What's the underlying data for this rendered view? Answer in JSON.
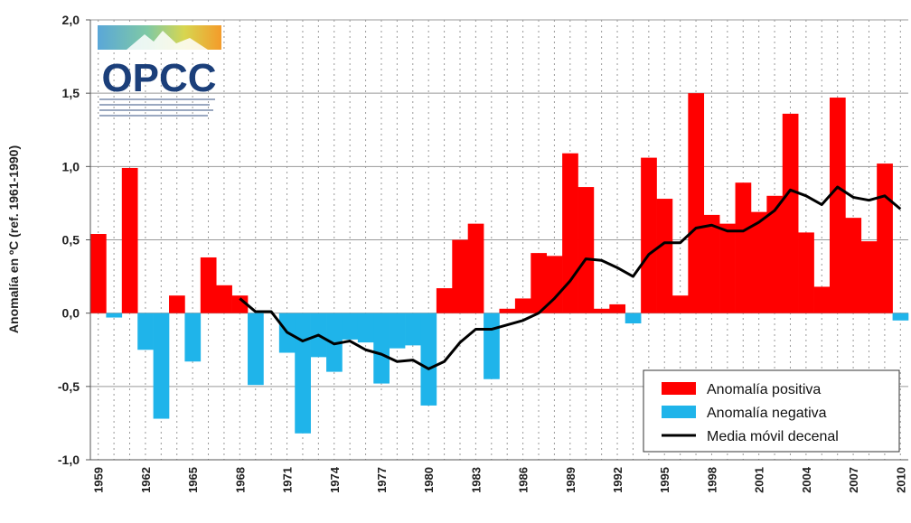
{
  "chart_data": {
    "type": "bar",
    "y_label": "Anomalía en ºC (ref. 1961-1990)",
    "logo": "OPCC",
    "categories": [
      "1959",
      null,
      null,
      "1962",
      null,
      null,
      "1965",
      null,
      null,
      "1968",
      null,
      null,
      "1971",
      null,
      null,
      "1974",
      null,
      null,
      "1977",
      null,
      null,
      "1980",
      null,
      null,
      "1983",
      null,
      null,
      "1986",
      null,
      null,
      "1989",
      null,
      null,
      "1992",
      null,
      null,
      "1995",
      null,
      null,
      "1998",
      null,
      null,
      "2001",
      null,
      null,
      "2004",
      null,
      null,
      "2007",
      null,
      null,
      "2010"
    ],
    "series": [
      {
        "name": "Anomalía positiva",
        "color": "#ff0000",
        "type": "bar",
        "values": [
          0.54,
          null,
          0.99,
          null,
          null,
          0.12,
          null,
          0.38,
          0.19,
          0.12,
          null,
          0,
          null,
          null,
          null,
          null,
          null,
          null,
          null,
          null,
          null,
          null,
          0.17,
          0.5,
          0.61,
          null,
          0.03,
          0.1,
          0.41,
          0.39,
          1.09,
          0.86,
          0.03,
          0.06,
          null,
          1.06,
          0.78,
          0.12,
          1.5,
          0.67,
          0.61,
          0.89,
          0.69,
          0.8,
          1.36,
          0.55,
          0.18,
          1.47,
          0.65,
          0.49,
          1.02,
          null
        ]
      },
      {
        "name": "Anomalía negativa",
        "color": "#1fb4ea",
        "type": "bar",
        "values": [
          null,
          -0.03,
          null,
          -0.25,
          -0.72,
          null,
          -0.33,
          null,
          null,
          null,
          -0.49,
          null,
          -0.27,
          -0.82,
          -0.3,
          -0.4,
          -0.18,
          -0.2,
          -0.48,
          -0.24,
          -0.22,
          -0.63,
          null,
          null,
          null,
          -0.45,
          null,
          null,
          null,
          null,
          null,
          null,
          null,
          null,
          -0.07,
          null,
          null,
          null,
          null,
          null,
          null,
          null,
          null,
          null,
          null,
          null,
          null,
          null,
          null,
          null,
          null,
          -0.05
        ]
      },
      {
        "name": "Media móvil decenal",
        "color": "#000000",
        "type": "line",
        "values": [
          null,
          null,
          null,
          null,
          null,
          null,
          null,
          null,
          null,
          0.1,
          0.01,
          0.01,
          -0.13,
          -0.19,
          -0.15,
          -0.21,
          -0.19,
          -0.25,
          -0.28,
          -0.33,
          -0.32,
          -0.38,
          -0.33,
          -0.2,
          -0.11,
          -0.11,
          -0.08,
          -0.05,
          0.0,
          0.1,
          0.22,
          0.37,
          0.36,
          0.31,
          0.25,
          0.4,
          0.48,
          0.48,
          0.58,
          0.6,
          0.56,
          0.56,
          0.62,
          0.7,
          0.84,
          0.8,
          0.74,
          0.86,
          0.79,
          0.77,
          0.8,
          0.71
        ]
      }
    ],
    "ylim": [
      -1,
      2
    ],
    "yticks": [
      {
        "value": -1,
        "label": "-1,0"
      },
      {
        "value": -0.5,
        "label": "-0,5"
      },
      {
        "value": 0,
        "label": "0,0"
      },
      {
        "value": 0.5,
        "label": "0,5"
      },
      {
        "value": 1,
        "label": "1,0"
      },
      {
        "value": 1.5,
        "label": "1,5"
      },
      {
        "value": 2,
        "label": "2,0"
      }
    ],
    "grid": true,
    "legend": "bottom-right"
  }
}
